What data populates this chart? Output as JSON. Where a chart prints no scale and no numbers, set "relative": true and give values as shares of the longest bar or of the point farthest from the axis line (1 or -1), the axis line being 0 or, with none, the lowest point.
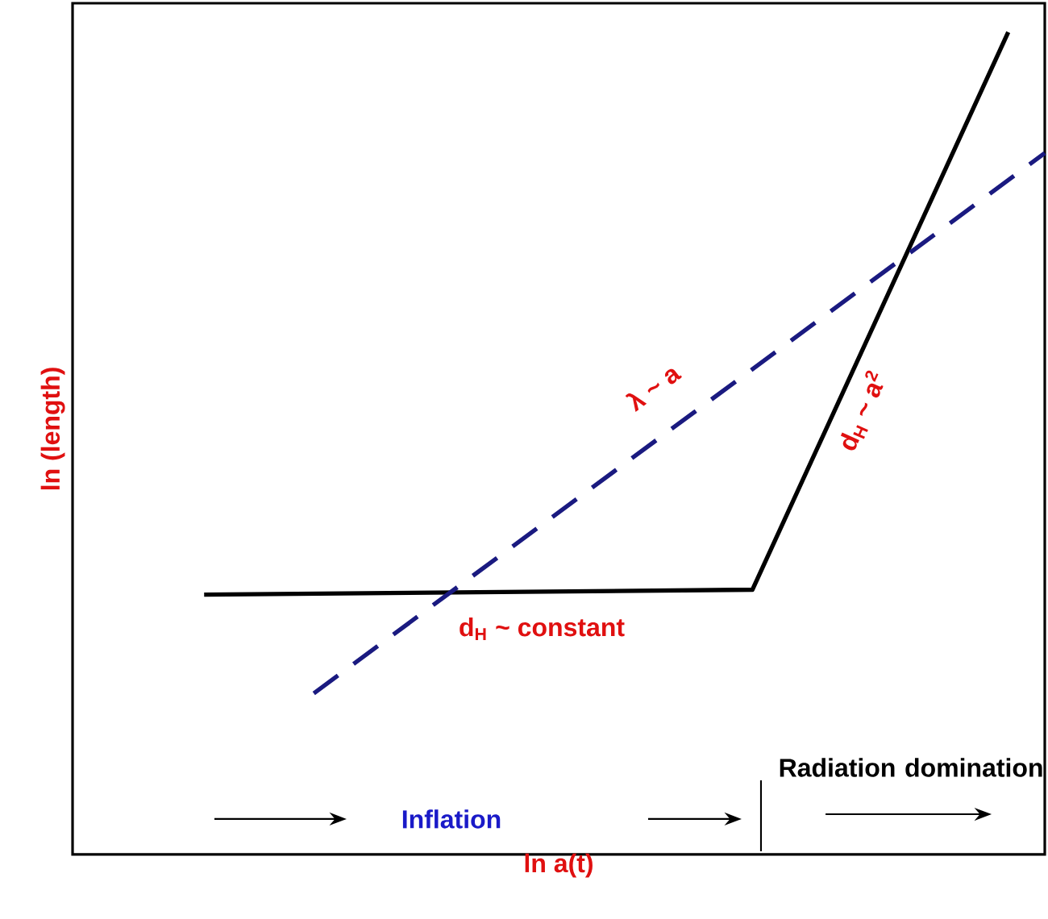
{
  "chart_data": {
    "type": "line",
    "relative": true,
    "xlabel": "ln a(t)",
    "ylabel": "ln (length)",
    "tick_labels": false,
    "categories": [
      null,
      null,
      null,
      null,
      null,
      null,
      null,
      null,
      null,
      null,
      null,
      null,
      null,
      null,
      null,
      null,
      null,
      null,
      null,
      null,
      null,
      null,
      null,
      null
    ],
    "series": [
      {
        "color": "#000000",
        "line_style": "solid",
        "values": [
          0.316,
          null,
          null,
          null,
          null,
          null,
          null,
          null,
          null,
          null,
          null,
          null,
          null,
          null,
          null,
          0.322,
          null,
          null,
          null,
          null,
          null,
          null,
          1.0,
          null
        ]
      },
      {
        "color": "#1a1a80",
        "line_style": "dashed",
        "values": [
          null,
          null,
          null,
          0.196,
          null,
          null,
          null,
          null,
          null,
          null,
          null,
          null,
          null,
          null,
          null,
          null,
          null,
          null,
          null,
          null,
          null,
          null,
          null,
          0.853
        ]
      }
    ],
    "annotations": [
      "λ ~ a",
      "d$_{H}$ ~ a$^{2}$",
      "d$_{H}$ ~ constant",
      "Inflation",
      "Radiation domination"
    ]
  }
}
